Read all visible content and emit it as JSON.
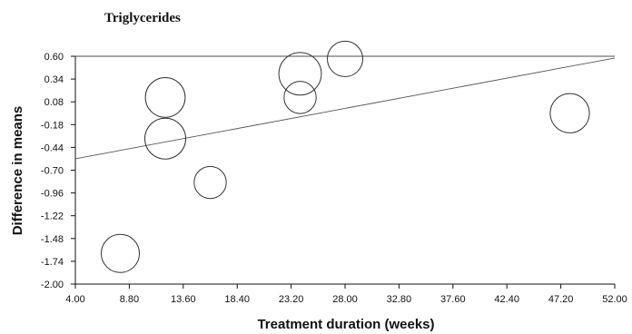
{
  "chart_data": {
    "type": "scatter",
    "title": "Triglycerides",
    "xlabel": "Treatment duration (weeks)",
    "ylabel": "Difference in means",
    "xlim": [
      4.0,
      52.0
    ],
    "ylim": [
      -2.0,
      0.6
    ],
    "xticks": [
      "4.00",
      "8.80",
      "13.60",
      "18.40",
      "23.20",
      "28.00",
      "32.80",
      "37.60",
      "42.40",
      "47.20",
      "52.00"
    ],
    "yticks": [
      "0.60",
      "0.34",
      "0.08",
      "-0.18",
      "-0.44",
      "-0.70",
      "-0.96",
      "-1.22",
      "-1.48",
      "-1.74",
      "-2.00"
    ],
    "grid": false,
    "legend": "none",
    "points": [
      {
        "x": 8.0,
        "y": -1.65,
        "weight": 1.0
      },
      {
        "x": 12.0,
        "y": 0.13,
        "weight": 1.15
      },
      {
        "x": 12.0,
        "y": -0.34,
        "weight": 1.25
      },
      {
        "x": 16.0,
        "y": -0.84,
        "weight": 0.45
      },
      {
        "x": 24.0,
        "y": 0.4,
        "weight": 1.4
      },
      {
        "x": 24.0,
        "y": 0.13,
        "weight": 0.45
      },
      {
        "x": 28.0,
        "y": 0.57,
        "weight": 0.75
      },
      {
        "x": 48.0,
        "y": -0.05,
        "weight": 1.1
      }
    ],
    "regression_line": {
      "x": [
        4.0,
        52.0
      ],
      "y": [
        -0.57,
        0.58
      ]
    },
    "colors": {
      "marker_stroke": "#333333",
      "axis": "#111111",
      "line": "#555555"
    }
  }
}
